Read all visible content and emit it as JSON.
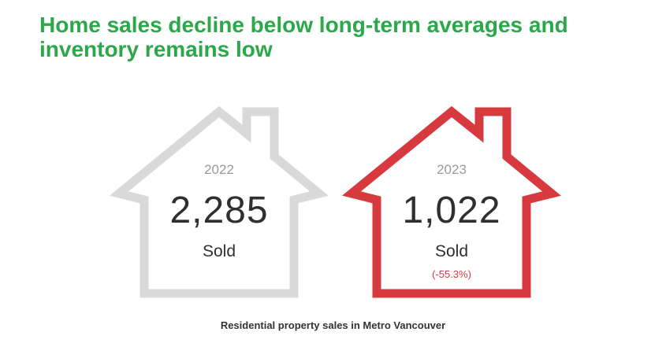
{
  "title": "Home sales decline below long-term averages and inventory remains low",
  "colors": {
    "title": "#2aa84a",
    "house_2022": "#d9d9d9",
    "house_2023": "#d63a3f",
    "change": "#d63a3f"
  },
  "houses": [
    {
      "year": "2022",
      "value": "2,285",
      "label": "Sold",
      "change": ""
    },
    {
      "year": "2023",
      "value": "1,022",
      "label": "Sold",
      "change": "(-55.3%)"
    }
  ],
  "caption": "Residential property sales in Metro Vancouver"
}
